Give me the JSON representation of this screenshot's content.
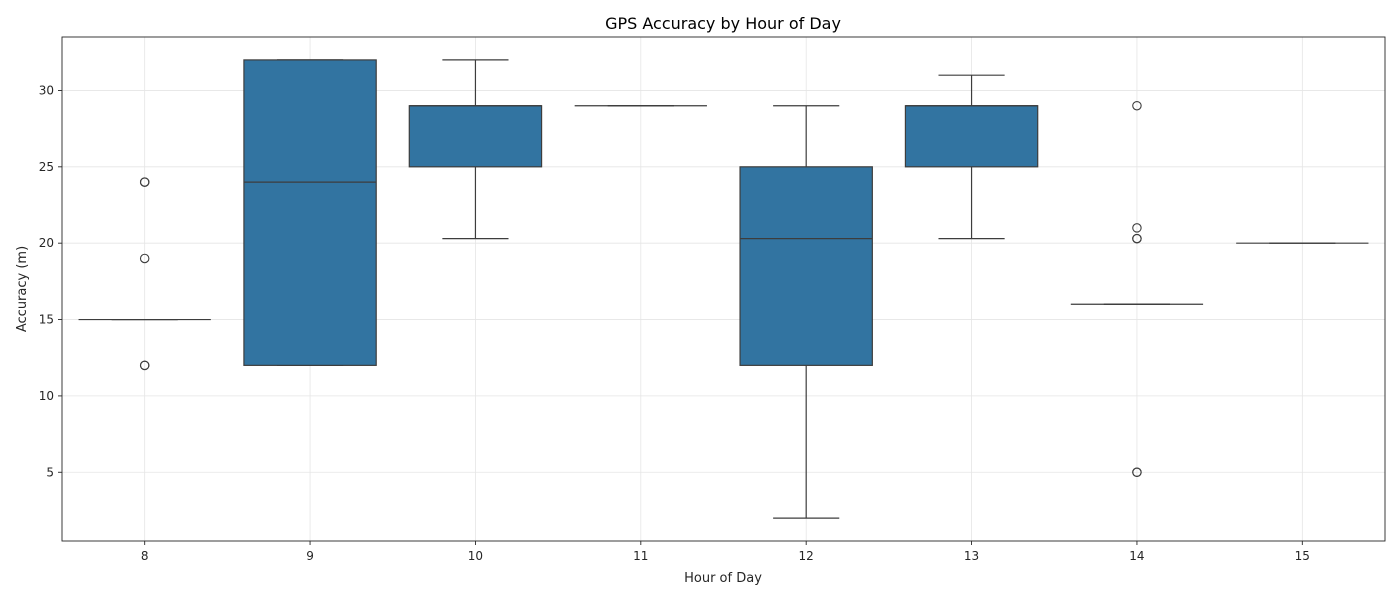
{
  "chart_data": {
    "type": "box",
    "title": "GPS Accuracy by Hour of Day",
    "xlabel": "Hour of Day",
    "ylabel": "Accuracy (m)",
    "categories": [
      "8",
      "9",
      "10",
      "11",
      "12",
      "13",
      "14",
      "15"
    ],
    "y_ticks": [
      5,
      10,
      15,
      20,
      25,
      30
    ],
    "ylim": [
      0.5,
      33.5
    ],
    "grid": true,
    "box_color": "#3274a1",
    "line_color": "#3d3d3d",
    "boxes": [
      {
        "category": "8",
        "whisker_low": 15,
        "q1": 15,
        "median": 15,
        "q3": 15,
        "whisker_high": 15,
        "outliers": [
          24,
          24,
          19,
          12,
          12
        ]
      },
      {
        "category": "9",
        "whisker_low": 12,
        "q1": 12,
        "median": 24,
        "q3": 32,
        "whisker_high": 32,
        "outliers": []
      },
      {
        "category": "10",
        "whisker_low": 20.3,
        "q1": 25,
        "median": 29,
        "q3": 29,
        "whisker_high": 32,
        "outliers": []
      },
      {
        "category": "11",
        "whisker_low": 29,
        "q1": 29,
        "median": 29,
        "q3": 29,
        "whisker_high": 29,
        "outliers": []
      },
      {
        "category": "12",
        "whisker_low": 2,
        "q1": 12,
        "median": 20.3,
        "q3": 25,
        "whisker_high": 29,
        "outliers": []
      },
      {
        "category": "13",
        "whisker_low": 20.3,
        "q1": 25,
        "median": 29,
        "q3": 29,
        "whisker_high": 31,
        "outliers": []
      },
      {
        "category": "14",
        "whisker_low": 16,
        "q1": 16,
        "median": 16,
        "q3": 16,
        "whisker_high": 16,
        "outliers": [
          29,
          21,
          20.3,
          20.3,
          5,
          5
        ]
      },
      {
        "category": "15",
        "whisker_low": 20,
        "q1": 20,
        "median": 20,
        "q3": 20,
        "whisker_high": 20,
        "outliers": []
      }
    ]
  }
}
